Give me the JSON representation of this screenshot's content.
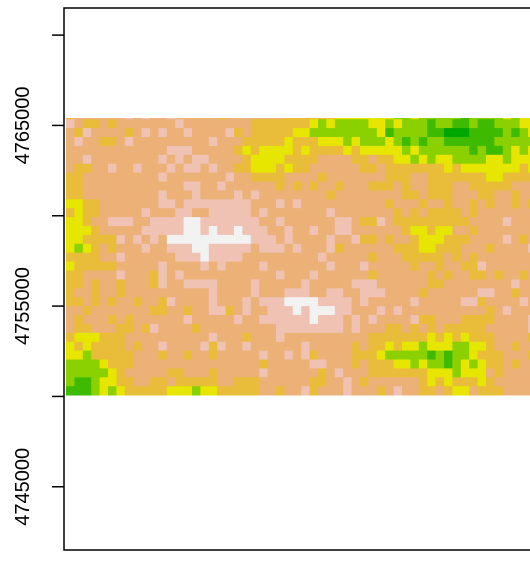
{
  "chart_data": {
    "type": "heatmap",
    "title": "",
    "xlabel": "",
    "ylabel": "",
    "ylim": [
      4741500,
      4771500
    ],
    "y_ticks": [
      4745000,
      4750000,
      4755000,
      4760000,
      4765000,
      4770000
    ],
    "y_tick_labels": [
      "4745000",
      "",
      "4755000",
      "",
      "4765000",
      ""
    ],
    "raster_extent_y": [
      4750200,
      4768300
    ],
    "colormap": "terrain.colors (high = light pink/white, low = green)",
    "palette": [
      "#00A600",
      "#3EBB00",
      "#8BD000",
      "#E6E600",
      "#E9BD3A",
      "#ECB176",
      "#EFC2B3",
      "#F2F2F2"
    ],
    "grid": false,
    "legend": "none"
  }
}
